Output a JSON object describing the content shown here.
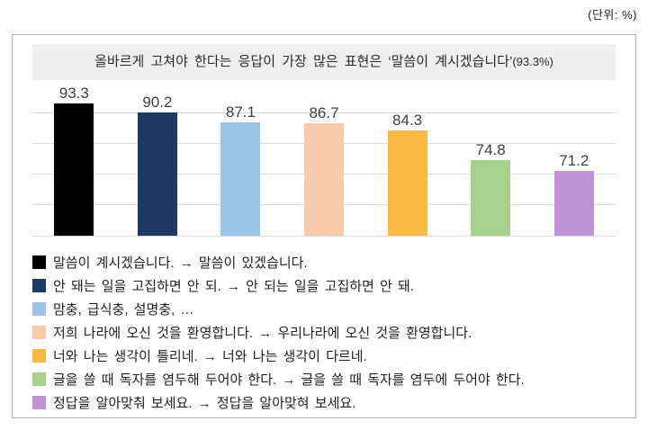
{
  "unit_note": "(단위: %)",
  "headline": {
    "text": "올바르게 고쳐야 한다는 응답이 가장 많은 표현은 ‘말씀이 계시겠습니다’",
    "pct": "(93.3%)"
  },
  "chart_data": {
    "type": "bar",
    "title": "올바르게 고쳐야 한다는 응답이 가장 많은 표현은 ‘말씀이 계시겠습니다’(93.3%)",
    "unit": "%",
    "categories": [
      "말씀이 계시겠습니다. → 말씀이 있겠습니다.",
      "안 돼는 일을 고집하면 안 되. → 안 되는 일을 고집하면 안 돼.",
      "맘충, 급식충, 설명충, …",
      "저희 나라에 오신 것을 환영합니다. → 우리나라에 오신 것을 환영합니다.",
      "너와 나는 생각이 틀리네. → 너와 나는 생각이 다르네.",
      "글을 쓸 때 독자를 염두해 두어야 한다. → 글을 쓸 때 독자를 염두에 두어야 한다.",
      "정답을 알아맞춰 보세요. → 정답을 알아맞혀 보세요."
    ],
    "values": [
      93.3,
      90.2,
      87.1,
      86.7,
      84.3,
      74.8,
      71.2
    ],
    "bar_colors": [
      "#000000",
      "#1f3864",
      "#9dc3e6",
      "#f8cbad",
      "#fbba43",
      "#a9d18e",
      "#be93d8"
    ],
    "xlabel": "",
    "ylabel": "",
    "ylim": [
      50,
      95
    ],
    "gridlines": [
      60,
      70,
      80,
      90
    ],
    "grid": true,
    "legend_position": "bottom"
  },
  "colors": {
    "panel_border": "#b0b0b0",
    "headline_bg": "#efefef",
    "gridline": "#d9d9d9",
    "value_label": "#404040",
    "legend_text": "#1f1f1f"
  }
}
